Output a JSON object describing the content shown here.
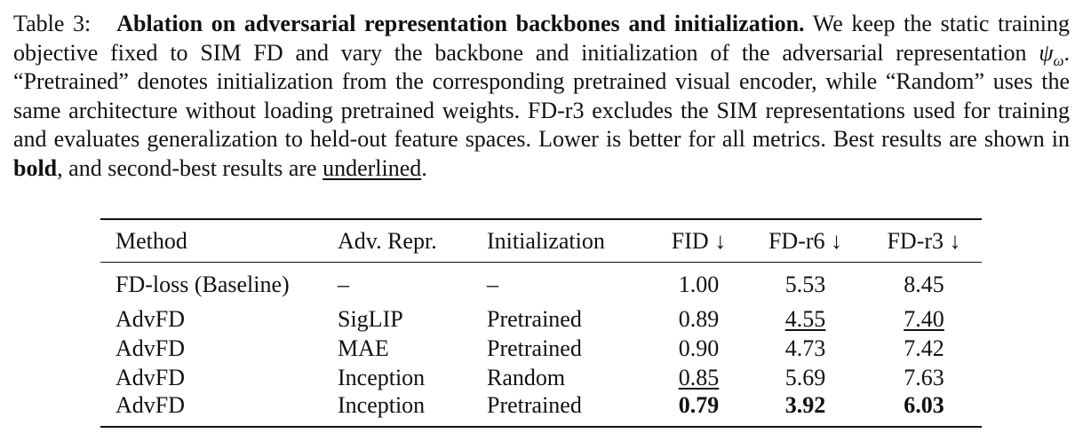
{
  "caption": {
    "label": "Table 3:",
    "title": "Ablation on adversarial representation backbones and initialization.",
    "text_1": "We keep the static training objective fixed to SIM FD and vary the backbone and initialization of the adversarial representation",
    "math_symbol": "ψ",
    "math_subscript": "ω",
    "text_2": ". “Pretrained” denotes initialization from the corresponding pretrained visual encoder, while “Random” uses the same architecture without loading pretrained weights. FD-r3 excludes the SIM representations used for training and evaluates generalization to held-out feature spaces. Lower is better for all metrics. Best results are shown in",
    "bold_word": "bold",
    "text_3": ", and second-best results are",
    "underlined_word": "underlined",
    "text_4": "."
  },
  "table": {
    "header": [
      "Method",
      "Adv. Repr.",
      "Initialization",
      "FID ↓",
      "FD-r6 ↓",
      "FD-r3 ↓"
    ],
    "baseline": [
      "FD-loss (Baseline)",
      "–",
      "–",
      "1.00",
      "5.53",
      "8.45"
    ],
    "rows": [
      [
        "AdvFD",
        "SigLIP",
        "Pretrained",
        "0.89",
        "4.55",
        "7.40"
      ],
      [
        "AdvFD",
        "MAE",
        "Pretrained",
        "0.90",
        "4.73",
        "7.42"
      ],
      [
        "AdvFD",
        "Inception",
        "Random",
        "0.85",
        "5.69",
        "7.63"
      ],
      [
        "AdvFD",
        "Inception",
        "Pretrained",
        "0.79",
        "3.92",
        "6.03"
      ]
    ],
    "bold_cells": [
      [
        3,
        3
      ],
      [
        3,
        4
      ],
      [
        3,
        5
      ]
    ],
    "underlined_cells": [
      [
        0,
        4
      ],
      [
        0,
        5
      ],
      [
        2,
        3
      ]
    ]
  }
}
